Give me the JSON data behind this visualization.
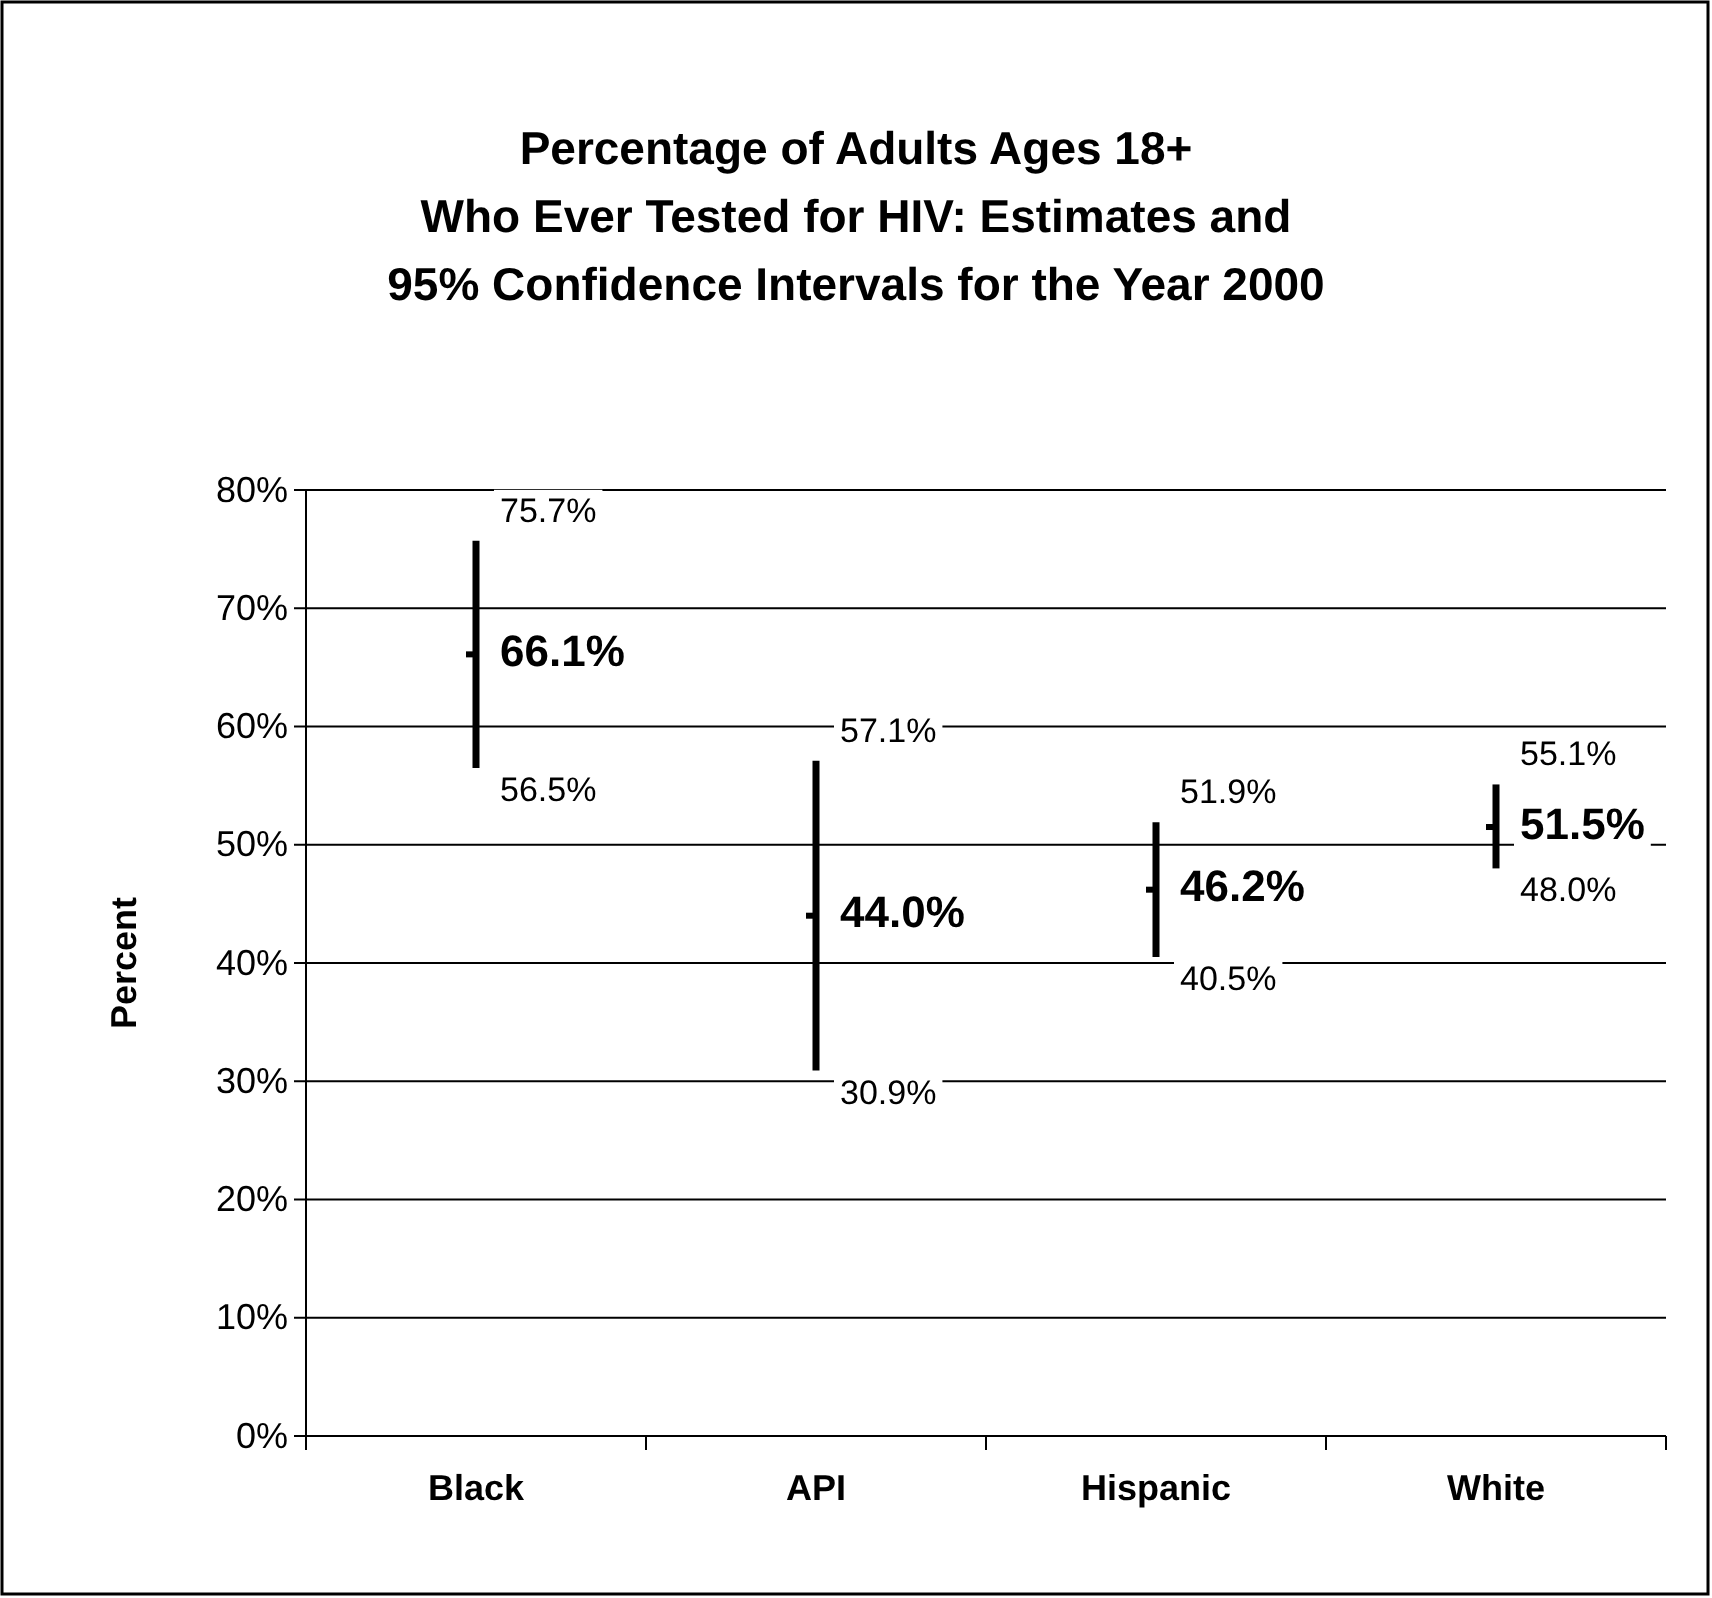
{
  "chart_data": {
    "type": "scatter",
    "title": "Percentage of Adults Ages 18+\nWho Ever Tested for HIV: Estimates and\n95% Confidence Intervals for the Year 2000",
    "ylabel": "Percent",
    "categories": [
      "Black",
      "API",
      "Hispanic",
      "White"
    ],
    "values": [
      66.1,
      44.0,
      46.2,
      51.5
    ],
    "value_labels": [
      "66.1%",
      "44.0%",
      "46.2%",
      "51.5%"
    ],
    "errors": [
      [
        56.5,
        75.7
      ],
      [
        30.9,
        57.1
      ],
      [
        40.5,
        51.9
      ],
      [
        48.0,
        55.1
      ]
    ],
    "color": "#000000",
    "annotations": [
      {
        "text": "75.7%",
        "x": "Black",
        "y": 75.7
      },
      {
        "text": "56.5%",
        "x": "Black",
        "y": 56.5
      },
      {
        "text": "57.1%",
        "x": "API",
        "y": 57.1
      },
      {
        "text": "30.9%",
        "x": "API",
        "y": 30.9
      },
      {
        "text": "51.9%",
        "x": "Hispanic",
        "y": 51.9
      },
      {
        "text": "40.5%",
        "x": "Hispanic",
        "y": 40.5
      },
      {
        "text": "55.1%",
        "x": "White",
        "y": 55.1
      },
      {
        "text": "48.0%",
        "x": "White",
        "y": 48.0
      }
    ],
    "ylim": [
      0,
      80
    ],
    "yticks": [
      {
        "value": 0,
        "label": "0%"
      },
      {
        "value": 10,
        "label": "10%"
      },
      {
        "value": 20,
        "label": "20%"
      },
      {
        "value": 30,
        "label": "30%"
      },
      {
        "value": 40,
        "label": "40%"
      },
      {
        "value": 50,
        "label": "50%"
      },
      {
        "value": 60,
        "label": "60%"
      },
      {
        "value": 70,
        "label": "70%"
      },
      {
        "value": 80,
        "label": "80%"
      }
    ],
    "grid": "y"
  }
}
